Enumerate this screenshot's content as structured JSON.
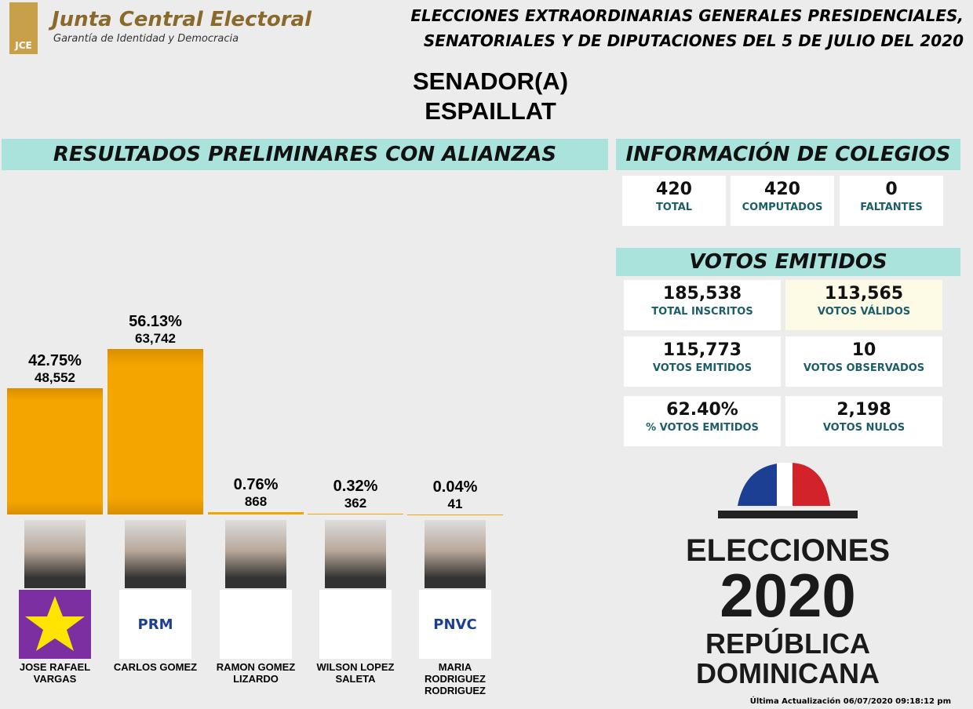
{
  "header": {
    "org_mark": "JCE",
    "org_name": "Junta Central Electoral",
    "org_tagline": "Garantía de Identidad y Democracia",
    "election_title_1": "ELECCIONES EXTRAORDINARIAS GENERALES PRESIDENCIALES,",
    "election_title_2": "SENATORIALES Y DE DIPUTACIONES DEL 5 DE JULIO DEL 2020",
    "position": "SENADOR(A)",
    "province": "ESPAILLAT"
  },
  "chart_data": {
    "type": "bar",
    "title": "RESULTADOS PRELIMINARES CON ALIANZAS",
    "color": "#f5a500",
    "categories": [
      "JOSE RAFAEL VARGAS",
      "CARLOS GOMEZ",
      "RAMON GOMEZ LIZARDO",
      "WILSON LOPEZ SALETA",
      "MARIA RODRIGUEZ RODRIGUEZ"
    ],
    "values": [
      42.75,
      56.13,
      0.76,
      0.32,
      0.04
    ],
    "value_labels": [
      "42.75%",
      "56.13%",
      "0.76%",
      "0.32%",
      "0.04%"
    ],
    "votes": [
      48552,
      63742,
      868,
      362,
      41
    ],
    "votes_labels": [
      "48,552",
      "63,742",
      "868",
      "362",
      "41"
    ],
    "party_logo_labels": [
      null,
      "PRM",
      null,
      null,
      "PNVC"
    ]
  },
  "colegios": {
    "title": "INFORMACIÓN DE COLEGIOS",
    "items": [
      {
        "value": "420",
        "label": "TOTAL"
      },
      {
        "value": "420",
        "label": "COMPUTADOS"
      },
      {
        "value": "0",
        "label": "FALTANTES"
      }
    ]
  },
  "votos": {
    "title": "VOTOS EMITIDOS",
    "items": [
      {
        "value": "185,538",
        "label": "TOTAL INSCRITOS"
      },
      {
        "value": "113,565",
        "label": "VOTOS VÁLIDOS"
      },
      {
        "value": "115,773",
        "label": "VOTOS EMITIDOS"
      },
      {
        "value": "10",
        "label": "VOTOS OBSERVADOS"
      },
      {
        "value": "62.40%",
        "label": "% VOTOS EMITIDOS"
      },
      {
        "value": "2,198",
        "label": "VOTOS NULOS"
      }
    ]
  },
  "brand": {
    "line1": "ELECCIONES",
    "line2": "2020",
    "line3": "REPÚBLICA",
    "line4": "DOMINICANA"
  },
  "footer": {
    "updated": "Última Actualización 06/07/2020 09:18:12 pm"
  }
}
